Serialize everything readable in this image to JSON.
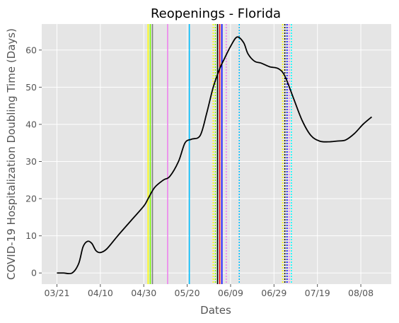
{
  "chart_data": {
    "type": "line",
    "title": "Reopenings - Florida",
    "xlabel": "Dates",
    "ylabel": "COVID-19 Hospitalization Doubling Time (Days)",
    "x_tick_labels": [
      "03/21",
      "04/10",
      "04/30",
      "05/20",
      "06/09",
      "06/29",
      "07/19",
      "08/08"
    ],
    "x_tick_dates": [
      "2020-03-21",
      "2020-04-10",
      "2020-04-30",
      "2020-05-20",
      "2020-06-09",
      "2020-06-29",
      "2020-07-19",
      "2020-08-08"
    ],
    "xlim": [
      "2020-03-14",
      "2020-08-22"
    ],
    "y_ticks": [
      0,
      10,
      20,
      30,
      40,
      50,
      60
    ],
    "ylim": [
      -3,
      67
    ],
    "grid": true,
    "style": {
      "background": "#e5e5e5",
      "grid_color": "#ffffff",
      "line_color": "#000000"
    },
    "series": [
      {
        "x": [
          "2020-03-21",
          "2020-03-24",
          "2020-03-28",
          "2020-03-31",
          "2020-04-02",
          "2020-04-04",
          "2020-04-06",
          "2020-04-08",
          "2020-04-10",
          "2020-04-13",
          "2020-04-18",
          "2020-04-24",
          "2020-04-30",
          "2020-05-02",
          "2020-05-05",
          "2020-05-09",
          "2020-05-12",
          "2020-05-16",
          "2020-05-19",
          "2020-05-22",
          "2020-05-26",
          "2020-05-29",
          "2020-06-01",
          "2020-06-04",
          "2020-06-06",
          "2020-06-09",
          "2020-06-12",
          "2020-06-15",
          "2020-06-17",
          "2020-06-20",
          "2020-06-23",
          "2020-06-27",
          "2020-07-01",
          "2020-07-04",
          "2020-07-08",
          "2020-07-12",
          "2020-07-16",
          "2020-07-20",
          "2020-07-24",
          "2020-07-28",
          "2020-08-01",
          "2020-08-05",
          "2020-08-09",
          "2020-08-13"
        ],
        "y": [
          0,
          0,
          0,
          2.5,
          7,
          8.5,
          8,
          6,
          5.5,
          6.5,
          10,
          14,
          18,
          20,
          23,
          25,
          26,
          30,
          35,
          36,
          37,
          43,
          50,
          55,
          57.5,
          61,
          63.5,
          62,
          59,
          57,
          56.5,
          55.5,
          55,
          53,
          47,
          41,
          37,
          35.5,
          35.3,
          35.5,
          35.8,
          37.5,
          40,
          42
        ]
      }
    ],
    "vlines": [
      {
        "date": "2020-05-02",
        "color": "#ffff00",
        "style": "solid"
      },
      {
        "date": "2020-05-03",
        "color": "#7cfc00",
        "style": "solid"
      },
      {
        "date": "2020-05-04",
        "color": "#808080",
        "style": "solid"
      },
      {
        "date": "2020-05-11",
        "color": "#ee82ee",
        "style": "solid"
      },
      {
        "date": "2020-05-21",
        "color": "#00bfff",
        "style": "solid"
      },
      {
        "date": "2020-06-01",
        "color": "#ffff00",
        "style": "dotted"
      },
      {
        "date": "2020-06-02",
        "color": "#7cfc00",
        "style": "dotted"
      },
      {
        "date": "2020-06-03",
        "color": "#000000",
        "style": "solid"
      },
      {
        "date": "2020-06-04",
        "color": "#ff0000",
        "style": "solid"
      },
      {
        "date": "2020-06-05",
        "color": "#0000ff",
        "style": "solid"
      },
      {
        "date": "2020-06-07",
        "color": "#ee82ee",
        "style": "dotted"
      },
      {
        "date": "2020-06-13",
        "color": "#00bfff",
        "style": "dotted"
      },
      {
        "date": "2020-07-03",
        "color": "#ffff00",
        "style": "dotted"
      },
      {
        "date": "2020-07-04",
        "color": "#000000",
        "style": "dotted"
      },
      {
        "date": "2020-07-05",
        "color": "#0000ff",
        "style": "dotted"
      },
      {
        "date": "2020-07-06",
        "color": "#ee82ee",
        "style": "dotted"
      },
      {
        "date": "2020-07-07",
        "color": "#00ffff",
        "style": "dotted"
      }
    ]
  }
}
